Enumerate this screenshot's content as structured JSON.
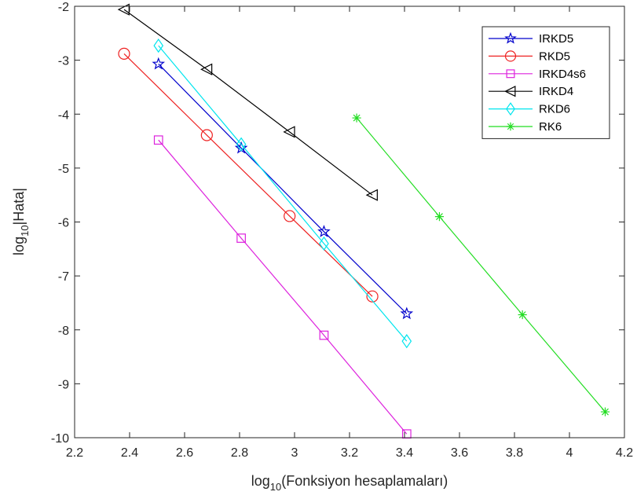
{
  "chart_data": {
    "type": "line",
    "xlabel": {
      "prefix": "log",
      "sub": "10",
      "suffix": "(Fonksiyon hesaplamaları)"
    },
    "ylabel": {
      "prefix": "log",
      "sub": "10",
      "suffix": "|Hata|"
    },
    "xlim": [
      2.2,
      4.2
    ],
    "ylim": [
      -10,
      -2
    ],
    "xticks": [
      2.2,
      2.4,
      2.6,
      2.8,
      3.0,
      3.2,
      3.4,
      3.6,
      3.8,
      4.0,
      4.2
    ],
    "xtick_labels": [
      "2.2",
      "2.4",
      "2.6",
      "2.8",
      "3",
      "3.2",
      "3.4",
      "3.6",
      "3.8",
      "4",
      "4.2"
    ],
    "yticks": [
      -10,
      -9,
      -8,
      -7,
      -6,
      -5,
      -4,
      -3,
      -2
    ],
    "ytick_labels": [
      "-10",
      "-9",
      "-8",
      "-7",
      "-6",
      "-5",
      "-4",
      "-3",
      "-2"
    ],
    "grid": false,
    "legend_position": "top-right",
    "series": [
      {
        "name": "IRKD5",
        "color": "#0000cc",
        "marker": "star",
        "x": [
          2.505,
          2.806,
          3.107,
          3.408
        ],
        "y": [
          -3.07,
          -4.63,
          -6.18,
          -7.7
        ]
      },
      {
        "name": "RKD5",
        "color": "#ee2222",
        "marker": "circle",
        "x": [
          2.38,
          2.681,
          2.982,
          3.283
        ],
        "y": [
          -2.88,
          -4.39,
          -5.89,
          -7.38
        ]
      },
      {
        "name": "IRKD4s6",
        "color": "#dd22dd",
        "marker": "square",
        "x": [
          2.505,
          2.806,
          3.107,
          3.408
        ],
        "y": [
          -4.48,
          -6.3,
          -8.1,
          -9.93
        ]
      },
      {
        "name": "IRKD4",
        "color": "#000000",
        "marker": "triangle-left",
        "x": [
          2.38,
          2.681,
          2.982,
          3.283
        ],
        "y": [
          -2.06,
          -3.17,
          -4.33,
          -5.5
        ]
      },
      {
        "name": "RKD6",
        "color": "#00e5ee",
        "marker": "diamond",
        "x": [
          2.505,
          2.806,
          3.107,
          3.408
        ],
        "y": [
          -2.73,
          -4.56,
          -6.4,
          -8.21
        ]
      },
      {
        "name": "RK6",
        "color": "#22dd22",
        "marker": "asterisk",
        "x": [
          3.226,
          3.527,
          3.829,
          4.13
        ],
        "y": [
          -4.07,
          -5.9,
          -7.72,
          -9.52
        ]
      }
    ]
  }
}
